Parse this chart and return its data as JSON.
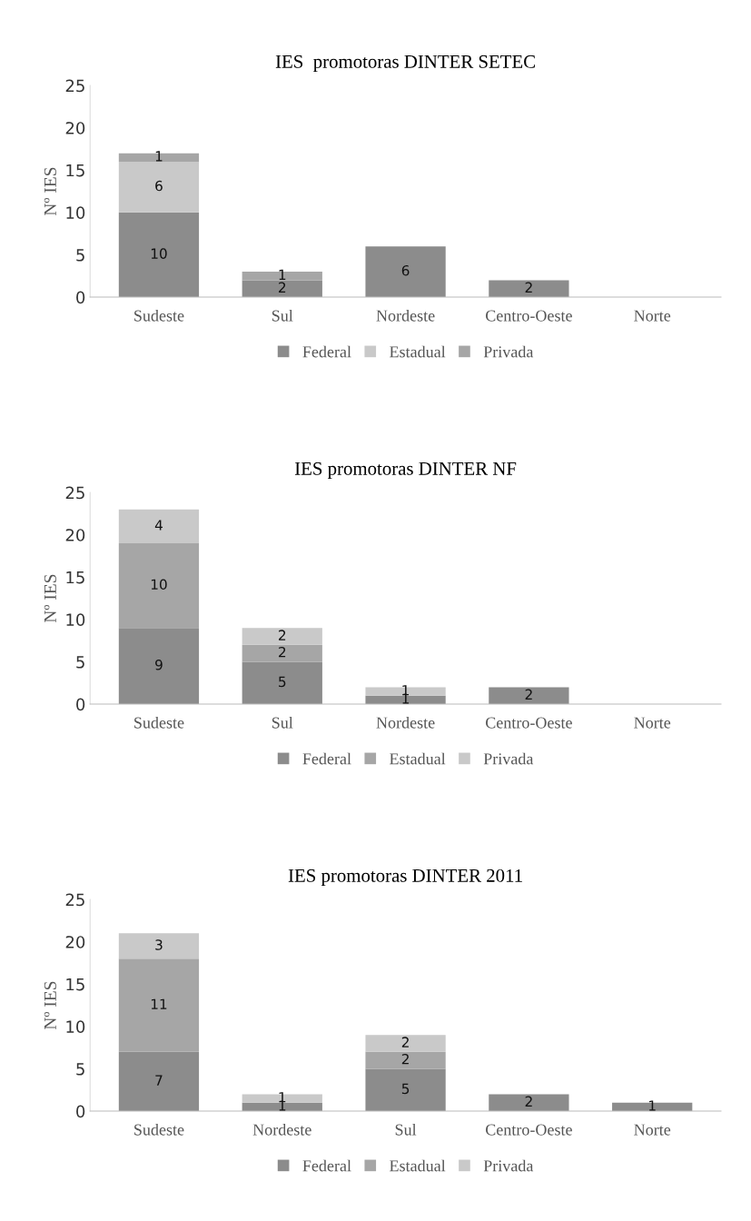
{
  "chart_data": [
    {
      "type": "bar",
      "title": "IES  promotoras DINTER SETEC",
      "ylabel": "Nº IES",
      "categories": [
        "Sudeste",
        "Sul",
        "Nordeste",
        "Centro-Oeste",
        "Norte"
      ],
      "stacked": true,
      "data_labels": true,
      "legend": "bottom",
      "ylim": [
        0,
        25
      ],
      "yticks": [
        0,
        5,
        10,
        15,
        20,
        25
      ],
      "series": [
        {
          "name": "Federal",
          "color": "#8c8c8c",
          "values": [
            10,
            2,
            6,
            2,
            null
          ]
        },
        {
          "name": "Estadual",
          "color": "#c9c9c9",
          "values": [
            6,
            null,
            null,
            null,
            null
          ]
        },
        {
          "name": "Privada",
          "color": "#a6a6a6",
          "values": [
            1,
            1,
            null,
            null,
            null
          ]
        }
      ]
    },
    {
      "type": "bar",
      "title": "IES promotoras DINTER NF",
      "ylabel": "Nº IES",
      "categories": [
        "Sudeste",
        "Sul",
        "Nordeste",
        "Centro-Oeste",
        "Norte"
      ],
      "stacked": true,
      "data_labels": true,
      "legend": "bottom",
      "ylim": [
        0,
        25
      ],
      "yticks": [
        0,
        5,
        10,
        15,
        20,
        25
      ],
      "series": [
        {
          "name": "Federal",
          "color": "#8c8c8c",
          "values": [
            9,
            5,
            1,
            2,
            null
          ]
        },
        {
          "name": "Estadual",
          "color": "#a6a6a6",
          "values": [
            10,
            2,
            null,
            null,
            null
          ]
        },
        {
          "name": "Privada",
          "color": "#c9c9c9",
          "values": [
            4,
            2,
            1,
            null,
            null
          ]
        }
      ]
    },
    {
      "type": "bar",
      "title": "IES promotoras DINTER 2011",
      "ylabel": "Nº IES",
      "categories": [
        "Sudeste",
        "Nordeste",
        "Sul",
        "Centro-Oeste",
        "Norte"
      ],
      "stacked": true,
      "data_labels": true,
      "legend": "bottom",
      "ylim": [
        0,
        25
      ],
      "yticks": [
        0,
        5,
        10,
        15,
        20,
        25
      ],
      "series": [
        {
          "name": "Federal",
          "color": "#8c8c8c",
          "values": [
            7,
            1,
            5,
            2,
            1
          ]
        },
        {
          "name": "Estadual",
          "color": "#a6a6a6",
          "values": [
            11,
            null,
            2,
            null,
            null
          ]
        },
        {
          "name": "Privada",
          "color": "#c9c9c9",
          "values": [
            3,
            1,
            2,
            null,
            null
          ]
        }
      ]
    }
  ]
}
